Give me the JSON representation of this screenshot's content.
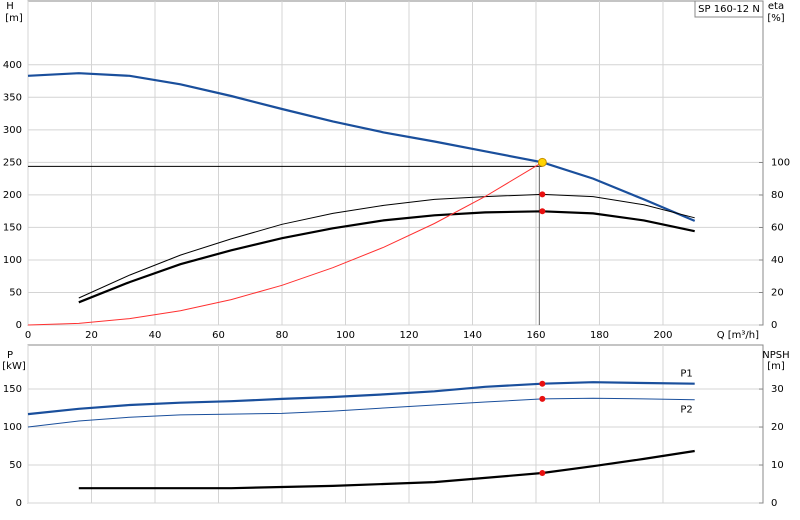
{
  "chart_data": [
    {
      "type": "line",
      "label": "SP 160-12 N",
      "x_label": "Q [m³/h]",
      "y_label": "H",
      "y_unit": "[m]",
      "y2_label": "eta",
      "y2_unit": "[%]",
      "x": [
        0,
        16,
        32,
        48,
        64,
        80,
        96,
        112,
        128,
        144,
        162,
        178,
        194,
        210
      ],
      "xlim": [
        0,
        231.5
      ],
      "xticks": [
        0,
        20,
        40,
        60,
        80,
        100,
        120,
        140,
        160,
        180,
        200
      ],
      "ylim": [
        0,
        498
      ],
      "yticks": [
        0,
        50,
        100,
        150,
        200,
        250,
        300,
        350,
        400
      ],
      "y2lim": [
        0,
        199.4
      ],
      "y2ticks": [
        0,
        20,
        40,
        60,
        80,
        100
      ],
      "grid": true,
      "series": [
        {
          "color": "#1a4f9c",
          "line": "thick",
          "values": [
            383,
            387,
            383,
            370,
            352,
            332,
            313,
            296,
            282,
            267,
            250,
            225,
            193,
            160
          ]
        },
        {
          "color": "#000000",
          "line": "thin",
          "axis": "y2",
          "values": [
            null,
            16.6,
            30.7,
            43,
            53,
            62,
            68.7,
            73.6,
            77.3,
            79,
            80.4,
            79,
            74,
            66
          ]
        },
        {
          "color": "#000000",
          "line": "thick",
          "axis": "y2",
          "values": [
            null,
            14,
            26.4,
            37.4,
            46,
            53.4,
            59.5,
            64.4,
            67.5,
            69.3,
            70,
            68.7,
            64.4,
            57.7
          ]
        },
        {
          "color": "#ff3030",
          "line": "thin",
          "values": [
            0,
            2.4,
            9.8,
            22,
            39,
            61,
            88,
            119.5,
            156,
            197.5,
            250,
            null,
            null,
            null
          ]
        }
      ],
      "markers": [
        {
          "x": 162,
          "y": 250,
          "color": "#ffd400",
          "duty": true
        },
        {
          "x": 162,
          "y": 80.4,
          "axis": "y2",
          "color": "#e81010"
        },
        {
          "x": 162,
          "y": 70,
          "axis": "y2",
          "color": "#e81010"
        }
      ]
    },
    {
      "type": "line",
      "y_label": "P",
      "y_unit": "[kW]",
      "y2_label": "NPSH",
      "y2_unit": "[m]",
      "x": [
        0,
        16,
        32,
        48,
        64,
        80,
        96,
        112,
        128,
        144,
        162,
        178,
        194,
        210
      ],
      "xlim": [
        0,
        231.5
      ],
      "ylim": [
        0,
        208
      ],
      "yticks": [
        0,
        50,
        100,
        150
      ],
      "y2lim": [
        0,
        41.6
      ],
      "y2ticks": [
        0,
        10,
        20,
        30
      ],
      "grid": true,
      "series": [
        {
          "name": "P1",
          "color": "#1a4f9c",
          "line": "thick",
          "values": [
            117,
            124,
            129,
            132,
            134,
            137,
            139.5,
            143,
            147,
            153,
            157,
            159,
            158,
            157
          ]
        },
        {
          "name": "P2",
          "color": "#1a4f9c",
          "line": "thin",
          "values": [
            100,
            108,
            113,
            116,
            117,
            118,
            121,
            125,
            129,
            133,
            137,
            138,
            137,
            136
          ]
        },
        {
          "color": "#000000",
          "line": "thick",
          "axis": "y2",
          "values": [
            null,
            3.9,
            3.9,
            3.9,
            3.9,
            4.2,
            4.5,
            5,
            5.5,
            6.6,
            7.9,
            9.7,
            11.6,
            13.7
          ]
        }
      ],
      "markers": [
        {
          "x": 162,
          "y": 157,
          "color": "#e81010"
        },
        {
          "x": 162,
          "y": 137,
          "color": "#e81010"
        },
        {
          "x": 162,
          "y": 7.9,
          "axis": "y2",
          "color": "#e81010"
        }
      ]
    }
  ]
}
